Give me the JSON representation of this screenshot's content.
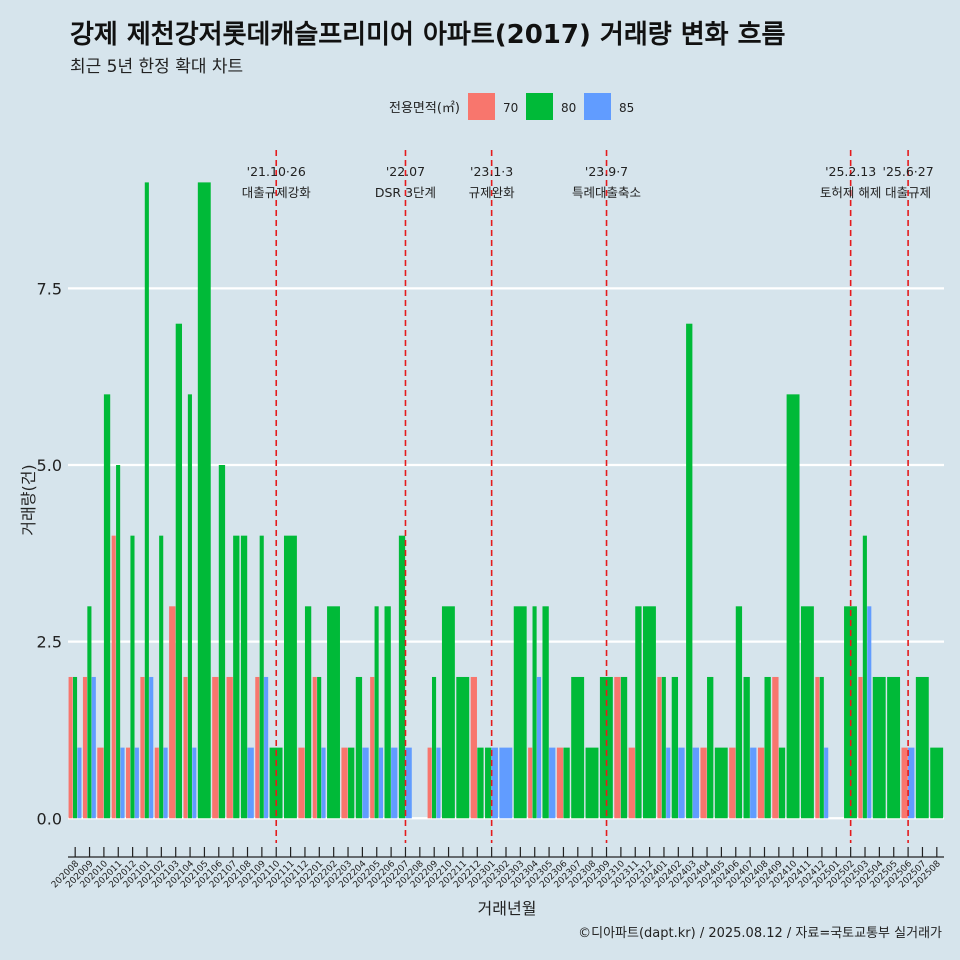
{
  "title": "강제 제천강저롯데캐슬프리미어 아파트(2017) 거래량 변화 흐름",
  "subtitle": "최근 5년 한정 확대 차트",
  "caption": "©디아파트(dapt.kr) / 2025.08.12 / 자료=국토교통부 실거래가",
  "chart_data": {
    "type": "bar",
    "xlabel": "거래년월",
    "ylabel": "거래량(건)",
    "ylim": [
      -0.35,
      9.6
    ],
    "yticks": [
      0.0,
      2.5,
      5.0,
      7.5
    ],
    "ytick_labels": [
      "0.0",
      "2.5",
      "5.0",
      "7.5"
    ],
    "legend": {
      "title": "전용면적(㎡)",
      "position": "top",
      "items": [
        {
          "label": "70",
          "color": "#f8766d"
        },
        {
          "label": "80",
          "color": "#00ba38"
        },
        {
          "label": "85",
          "color": "#619cff"
        }
      ]
    },
    "categories": [
      "202008",
      "202009",
      "202010",
      "202011",
      "202012",
      "202101",
      "202102",
      "202103",
      "202104",
      "202105",
      "202106",
      "202107",
      "202108",
      "202109",
      "202110",
      "202111",
      "202112",
      "202201",
      "202202",
      "202203",
      "202204",
      "202205",
      "202206",
      "202207",
      "202208",
      "202209",
      "202210",
      "202211",
      "202212",
      "202301",
      "202302",
      "202303",
      "202304",
      "202305",
      "202306",
      "202307",
      "202308",
      "202309",
      "202310",
      "202311",
      "202312",
      "202401",
      "202402",
      "202403",
      "202404",
      "202405",
      "202406",
      "202407",
      "202408",
      "202409",
      "202410",
      "202411",
      "202412",
      "202501",
      "202502",
      "202503",
      "202504",
      "202505",
      "202506",
      "202507",
      "202508"
    ],
    "series": [
      {
        "name": "70",
        "color": "#f8766d",
        "values": [
          2,
          2,
          1,
          4,
          1,
          2,
          1,
          3,
          2,
          0,
          2,
          2,
          0,
          2,
          0,
          0,
          1,
          2,
          0,
          1,
          0,
          2,
          0,
          0,
          0,
          1,
          0,
          0,
          2,
          0,
          0,
          0,
          1,
          0,
          1,
          0,
          0,
          0,
          2,
          1,
          0,
          2,
          0,
          0,
          1,
          0,
          1,
          0,
          1,
          2,
          0,
          0,
          2,
          0,
          0,
          2,
          0,
          0,
          1,
          0,
          0
        ]
      },
      {
        "name": "80",
        "color": "#00ba38",
        "values": [
          2,
          3,
          6,
          5,
          4,
          9,
          4,
          7,
          6,
          9,
          5,
          4,
          4,
          4,
          1,
          4,
          3,
          2,
          3,
          1,
          2,
          3,
          3,
          4,
          0,
          2,
          3,
          2,
          1,
          1,
          0,
          3,
          3,
          3,
          1,
          2,
          1,
          2,
          2,
          3,
          3,
          2,
          2,
          7,
          2,
          1,
          3,
          2,
          2,
          1,
          6,
          3,
          2,
          0,
          3,
          4,
          2,
          2,
          0,
          2,
          1
        ]
      },
      {
        "name": "85",
        "color": "#619cff",
        "values": [
          1,
          2,
          0,
          1,
          1,
          2,
          1,
          0,
          1,
          0,
          0,
          0,
          1,
          2,
          0,
          0,
          0,
          1,
          0,
          0,
          1,
          1,
          1,
          1,
          0,
          1,
          0,
          0,
          0,
          1,
          1,
          0,
          2,
          1,
          0,
          0,
          0,
          0,
          0,
          0,
          0,
          1,
          1,
          1,
          0,
          0,
          0,
          1,
          0,
          0,
          0,
          0,
          1,
          0,
          0,
          3,
          0,
          0,
          1,
          0,
          0
        ]
      }
    ],
    "annotations": [
      {
        "category": "202110",
        "date": "'21.10·26",
        "text": "대출규제강화"
      },
      {
        "category": "202207",
        "date": "'22.07",
        "text": "DSR 3단계"
      },
      {
        "category": "202301",
        "date": "'23.1·3",
        "text": "규제완화"
      },
      {
        "category": "202309",
        "date": "'23.9·7",
        "text": "특례대출축소"
      },
      {
        "category": "202502",
        "date": "'25.2.13",
        "text": "토허제 해제"
      },
      {
        "category": "202506",
        "date": "'25.6·27",
        "text": "대출규제"
      }
    ]
  }
}
